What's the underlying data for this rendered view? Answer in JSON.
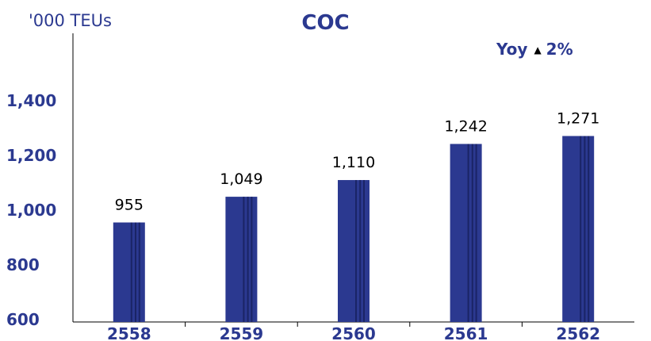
{
  "chart_data": {
    "type": "bar",
    "title": "COC",
    "ylabel": "'000 TEUs",
    "categories": [
      "2558",
      "2559",
      "2560",
      "2561",
      "2562"
    ],
    "values": [
      955,
      1049,
      1110,
      1242,
      1271
    ],
    "data_labels": [
      "955",
      "1,049",
      "1,110",
      "1,242",
      "1,271"
    ],
    "ylim": [
      600,
      1500
    ],
    "yticks": [
      600,
      800,
      1000,
      1200,
      1400
    ],
    "ytick_labels": [
      "600",
      "800",
      "1,000",
      "1,200",
      "1,400"
    ],
    "grid": false,
    "legend": "none",
    "annotation": {
      "label": "Yoy",
      "direction": "up",
      "value": "2%"
    },
    "colors": {
      "bar": "#2b3990",
      "bar_stripe": "#1a2466",
      "text": "#2b3990",
      "data_label": "#000000"
    }
  }
}
